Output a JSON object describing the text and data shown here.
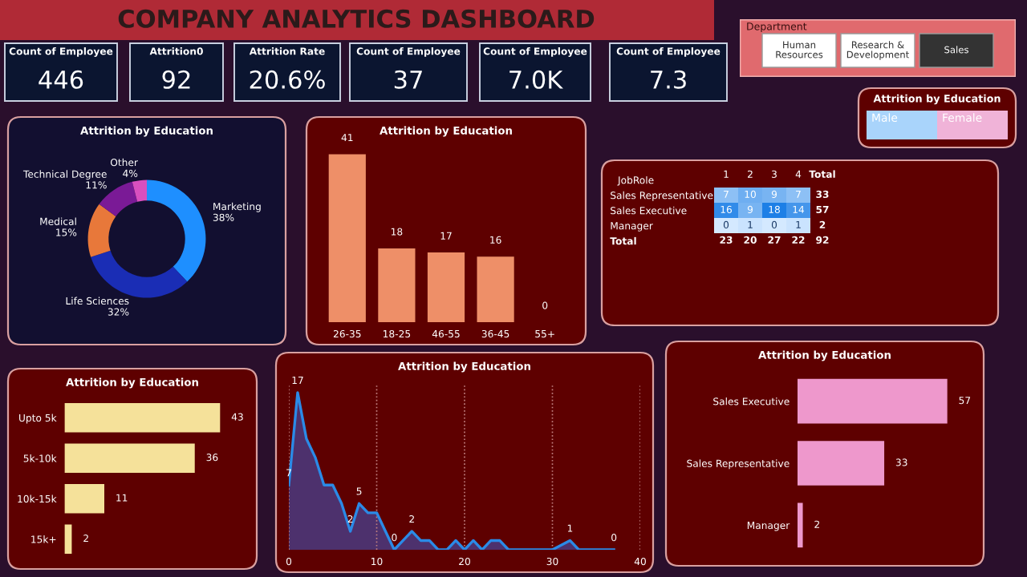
{
  "chart_data": [
    {
      "type": "other",
      "title": "COMPANY ANALYTICS DASHBOARD",
      "annotations": [
        "Count of Employee",
        "446",
        "Attrition0",
        "92",
        "Attrition Rate",
        "20.6%",
        "Count of Employee",
        "37",
        "Count of Employee",
        "7.0K",
        "Count of Employee",
        "7.3"
      ]
    },
    {
      "type": "other",
      "title": "Department",
      "annotations": [
        "Human Resources",
        "Research & Development",
        "Sales"
      ],
      "colors": [
        "#ffffff",
        "#ffffff",
        "#333333"
      ]
    },
    {
      "type": "other",
      "title": "Attrition by Education",
      "annotations": [
        "Male",
        "Female"
      ],
      "colors": [
        "#a9d4fb",
        "#f0b3d8"
      ]
    },
    {
      "type": "donut",
      "title": "Attrition by Education",
      "categories": [
        "Marketing",
        "Life Sciences",
        "Medical",
        "Technical Degree",
        "Other"
      ],
      "values": [
        38,
        32,
        15,
        11,
        4
      ],
      "value_labels": [
        "38%",
        "32%",
        "15%",
        "11%",
        "4%"
      ],
      "colors": [
        "#1e8fff",
        "#1a2db5",
        "#e8783a",
        "#7a1a96",
        "#d94fbf"
      ]
    },
    {
      "type": "bar",
      "title": "Attrition by Education",
      "categories": [
        "26-35",
        "18-25",
        "46-55",
        "36-45",
        "55+"
      ],
      "values": [
        41,
        18,
        17,
        16,
        0
      ],
      "color": "#ee8f68",
      "data_labels": true
    },
    {
      "type": "heatmap",
      "ylabel": "JobRole",
      "categories": [
        "1",
        "2",
        "3",
        "4",
        "Total"
      ],
      "y_categories": [
        "Sales Representative",
        "Sales Executive",
        "Manager",
        "Total"
      ],
      "cells": [
        [
          7,
          10,
          9,
          7,
          null
        ],
        [
          16,
          9,
          18,
          14,
          null
        ],
        [
          0,
          1,
          0,
          1,
          null
        ],
        [
          null,
          null,
          null,
          null,
          null
        ]
      ],
      "cell_labels": [
        [
          "7",
          "10",
          "9",
          "7",
          "33"
        ],
        [
          "16",
          "9",
          "18",
          "14",
          "57"
        ],
        [
          "0",
          "1",
          "0",
          "1",
          "2"
        ],
        [
          "23",
          "20",
          "27",
          "22",
          "92"
        ]
      ]
    },
    {
      "type": "bar",
      "orientation": "horizontal",
      "title": "Attrition by Education",
      "categories": [
        "Upto 5k",
        "5k-10k",
        "10k-15k",
        "15k+"
      ],
      "values": [
        43,
        36,
        11,
        2
      ],
      "color": "#f5e19a",
      "data_labels": true
    },
    {
      "type": "area",
      "title": "Attrition by Education",
      "x": [
        0,
        1,
        2,
        3,
        4,
        5,
        6,
        7,
        8,
        9,
        10,
        11,
        12,
        13,
        14,
        15,
        16,
        17,
        18,
        19,
        20,
        21,
        22,
        23,
        24,
        25,
        26,
        27,
        28,
        29,
        30,
        32,
        33,
        34,
        35,
        36,
        37
      ],
      "values": [
        7,
        17,
        12,
        10,
        7,
        7,
        5,
        2,
        5,
        4,
        4,
        2,
        0,
        1,
        2,
        1,
        1,
        0,
        0,
        1,
        0,
        1,
        0,
        1,
        1,
        0,
        0,
        0,
        0,
        0,
        0,
        1,
        0,
        0,
        0,
        0,
        0
      ],
      "value_labels": [
        "7",
        "17",
        null,
        null,
        null,
        null,
        null,
        "2",
        "5",
        null,
        null,
        null,
        "0",
        null,
        "2",
        null,
        null,
        null,
        null,
        null,
        null,
        null,
        null,
        null,
        null,
        null,
        null,
        null,
        null,
        null,
        null,
        "1",
        null,
        null,
        null,
        null,
        "0"
      ],
      "color": "#2b8ae6",
      "xlim": [
        0,
        40
      ],
      "xticks": [
        0,
        10,
        20,
        30,
        40
      ],
      "grid": "x"
    },
    {
      "type": "bar",
      "orientation": "horizontal",
      "title": "Attrition by Education",
      "categories": [
        "Sales Executive",
        "Sales Representative",
        "Manager"
      ],
      "values": [
        57,
        33,
        2
      ],
      "color": "#ee98cc",
      "data_labels": true
    }
  ]
}
